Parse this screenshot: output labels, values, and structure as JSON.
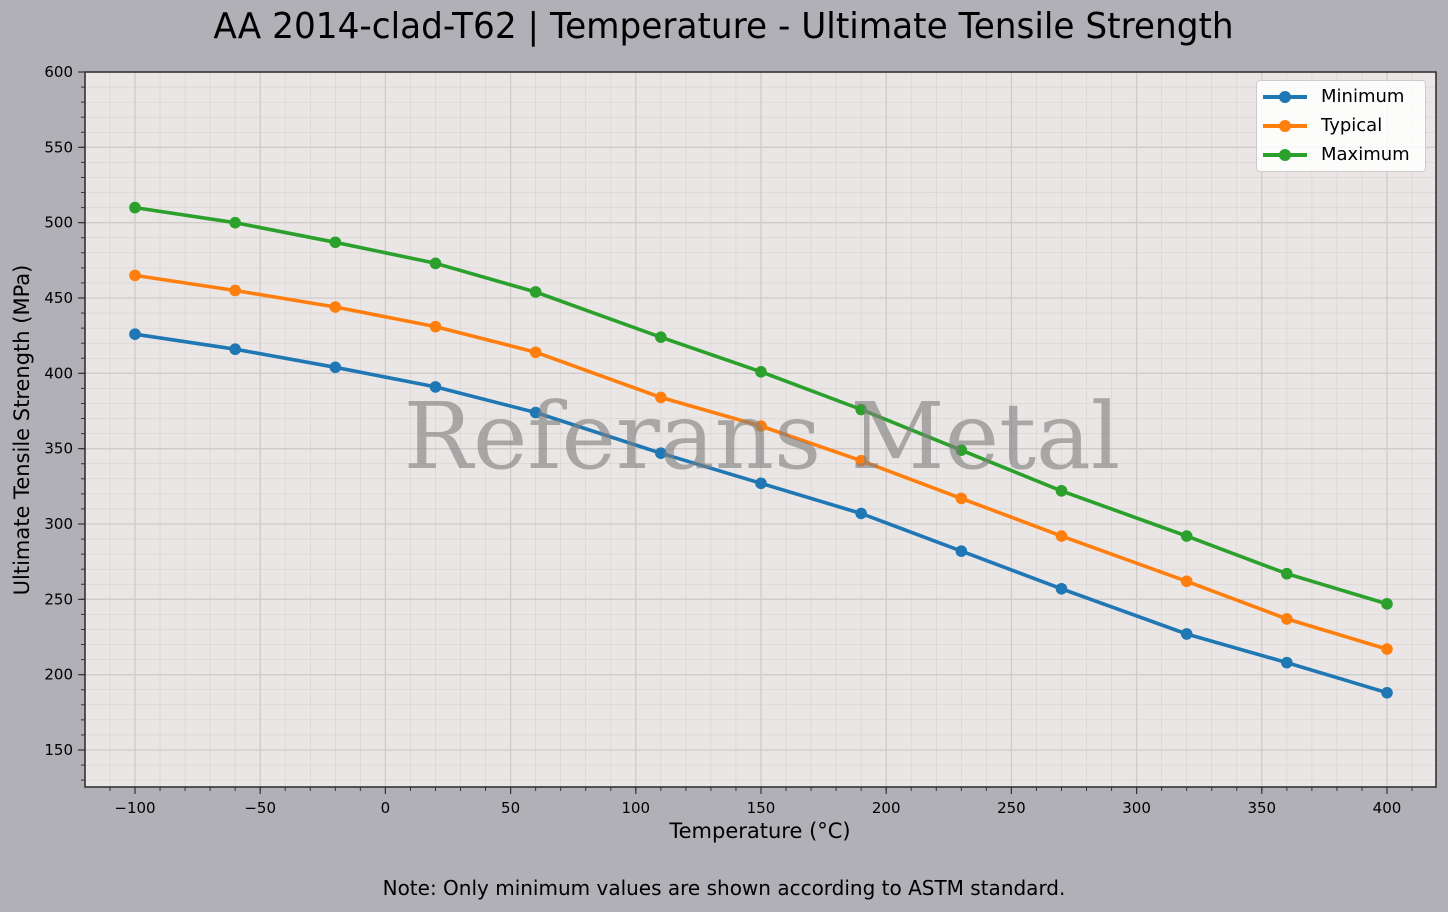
{
  "header": {
    "title": "AA 2014-clad-T62 | Temperature - Ultimate Tensile Strength"
  },
  "footer": {
    "note": "Note: Only minimum values are shown according to ASTM standard."
  },
  "watermark": "Referans Metal",
  "colors": {
    "figure_background": "#b1b0b6",
    "plot_background": "#eae6e5",
    "minimum": "#1f77b4",
    "typical": "#ff7f0e",
    "maximum": "#2ca02c"
  },
  "chart_data": {
    "type": "line",
    "title": "AA 2014-clad-T62 | Temperature - Ultimate Tensile Strength",
    "xlabel": "Temperature (°C)",
    "ylabel": "Ultimate Tensile Strength (MPa)",
    "xlim": [
      -120,
      420
    ],
    "ylim": [
      125,
      600
    ],
    "xticks": [
      -100,
      -50,
      0,
      50,
      100,
      150,
      200,
      250,
      300,
      350,
      400
    ],
    "xtick_labels": [
      "−100",
      "−50",
      "0",
      "50",
      "100",
      "150",
      "200",
      "250",
      "300",
      "350",
      "400"
    ],
    "yticks": [
      150,
      200,
      250,
      300,
      350,
      400,
      450,
      500,
      550,
      600
    ],
    "ytick_labels": [
      "150",
      "200",
      "250",
      "300",
      "350",
      "400",
      "450",
      "500",
      "550",
      "600"
    ],
    "grid": true,
    "minor_grid": true,
    "legend_position": "upper right",
    "x": [
      -100,
      -60,
      -20,
      20,
      60,
      110,
      150,
      190,
      230,
      270,
      320,
      360,
      400
    ],
    "series": [
      {
        "name": "Minimum",
        "color": "#1f77b4",
        "marker": "circle",
        "values": [
          426,
          416,
          404,
          391,
          374,
          347,
          327,
          307,
          282,
          257,
          227,
          208,
          188
        ]
      },
      {
        "name": "Typical",
        "color": "#ff7f0e",
        "marker": "circle",
        "values": [
          465,
          455,
          444,
          431,
          414,
          384,
          365,
          342,
          317,
          292,
          262,
          237,
          217
        ]
      },
      {
        "name": "Maximum",
        "color": "#2ca02c",
        "marker": "circle",
        "values": [
          510,
          500,
          487,
          473,
          454,
          424,
          401,
          376,
          349,
          322,
          292,
          267,
          247
        ]
      }
    ]
  },
  "legend": {
    "items": [
      {
        "label": "Minimum",
        "color": "#1f77b4"
      },
      {
        "label": "Typical",
        "color": "#ff7f0e"
      },
      {
        "label": "Maximum",
        "color": "#2ca02c"
      }
    ]
  }
}
